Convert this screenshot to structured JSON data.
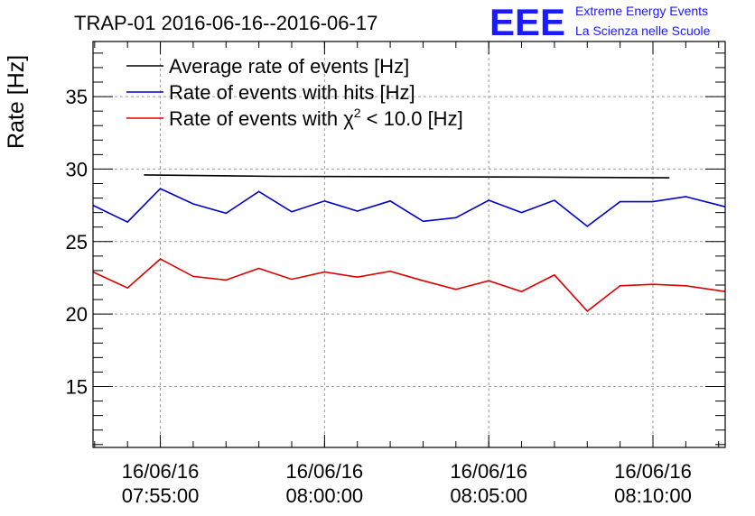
{
  "header": {
    "title": "TRAP-01 2016-06-16--2016-06-17"
  },
  "logo": {
    "mark": "EEE",
    "line1": "Extreme Energy Events",
    "line2": "La Scienza nelle Scuole",
    "color": "#1a1aff"
  },
  "chart_data": {
    "type": "line",
    "title": "TRAP-01 2016-06-16--2016-06-17",
    "xlabel": "",
    "ylabel": "Rate [Hz]",
    "ylim": [
      10.8,
      38.8
    ],
    "xlim": [
      "16/06/16 07:52:57",
      "16/06/16 08:12:12"
    ],
    "yticks": [
      15,
      20,
      25,
      30,
      35
    ],
    "xticks": [
      {
        "date": "16/06/16",
        "time": "07:55:00"
      },
      {
        "date": "16/06/16",
        "time": "08:00:00"
      },
      {
        "date": "16/06/16",
        "time": "08:05:00"
      },
      {
        "date": "16/06/16",
        "time": "08:10:00"
      }
    ],
    "grid": true,
    "legend_position": "top-left",
    "series": [
      {
        "name": "Average rate of events [Hz]",
        "color": "#000000",
        "x": [
          "07:54:30",
          "07:58:30",
          "08:06:30",
          "08:10:30"
        ],
        "y": [
          29.6,
          29.5,
          29.45,
          29.4
        ]
      },
      {
        "name": "Rate of events with hits [Hz]",
        "color": "#0000cc",
        "x": [
          "07:52:57",
          "07:54:00",
          "07:55:00",
          "07:56:00",
          "07:57:00",
          "07:58:00",
          "07:59:00",
          "08:00:00",
          "08:01:00",
          "08:02:00",
          "08:03:00",
          "08:04:00",
          "08:05:00",
          "08:06:00",
          "08:07:00",
          "08:08:00",
          "08:09:00",
          "08:10:00",
          "08:11:00",
          "08:12:12"
        ],
        "y": [
          27.5,
          26.35,
          28.65,
          27.6,
          26.95,
          28.45,
          27.05,
          27.8,
          27.1,
          27.8,
          26.4,
          26.65,
          27.85,
          27.0,
          27.85,
          26.05,
          27.75,
          27.75,
          28.1,
          27.4
        ]
      },
      {
        "name": "Rate of events with χ² < 10.0 [Hz]",
        "name_parts": {
          "pre": "Rate of events with χ",
          "sup": "2",
          "post": " < 10.0 [Hz]"
        },
        "color": "#dd0000",
        "x": [
          "07:52:57",
          "07:54:00",
          "07:55:00",
          "07:56:00",
          "07:57:00",
          "07:58:00",
          "07:59:00",
          "08:00:00",
          "08:01:00",
          "08:02:00",
          "08:03:00",
          "08:04:00",
          "08:05:00",
          "08:06:00",
          "08:07:00",
          "08:08:00",
          "08:09:00",
          "08:10:00",
          "08:11:00",
          "08:12:12"
        ],
        "y": [
          22.9,
          21.8,
          23.8,
          22.6,
          22.35,
          23.15,
          22.4,
          22.9,
          22.55,
          22.95,
          22.3,
          21.7,
          22.3,
          21.55,
          22.7,
          20.2,
          21.95,
          22.05,
          21.95,
          21.55
        ]
      }
    ]
  }
}
